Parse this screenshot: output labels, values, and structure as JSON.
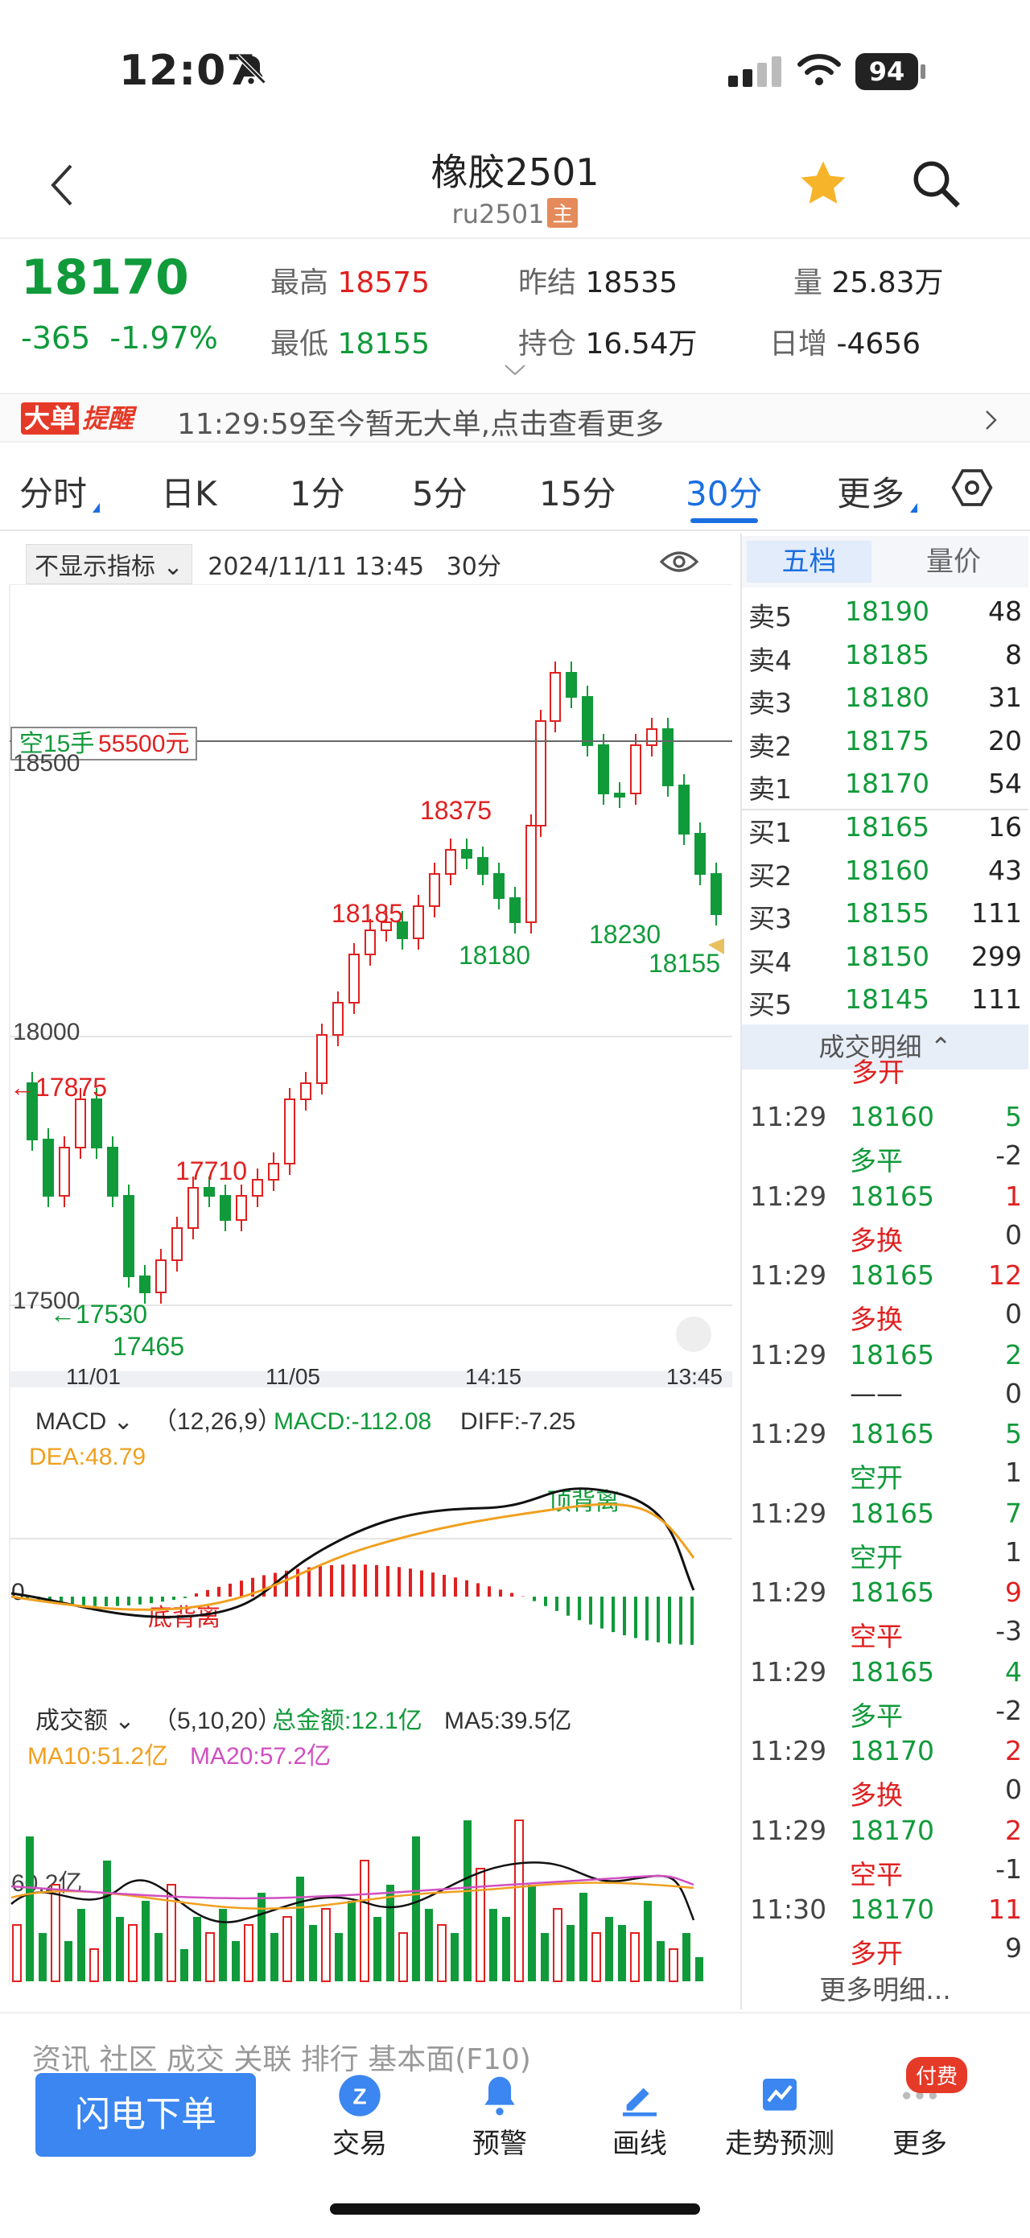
{
  "status_bar": {
    "time": "12:07",
    "battery": "94"
  },
  "header": {
    "title": "橡胶2501",
    "code": "ru2501",
    "main_tag": "主"
  },
  "quote": {
    "last_price": "18170",
    "change": "-365",
    "change_pct": "-1.97%",
    "high_label": "最高",
    "high": "18575",
    "low_label": "最低",
    "low": "18155",
    "prev_settle_label": "昨结",
    "prev_settle": "18535",
    "open_interest_label": "持仓",
    "open_interest": "16.54万",
    "volume_label": "量",
    "volume": "25.83万",
    "daily_inc_label": "日增",
    "daily_inc": "-4656"
  },
  "alert": {
    "tag_a": "大单",
    "tag_b": "提醒",
    "text": "11:29:59至今暂无大单,点击查看更多"
  },
  "tabs": [
    "分时",
    "日K",
    "1分",
    "5分",
    "15分",
    "30分",
    "更多"
  ],
  "active_tab": "30分",
  "chart_toolbar": {
    "indicator": "不显示指标",
    "datetime": "2024/11/11 13:45",
    "period": "30分"
  },
  "order_book": {
    "tab_a": "五档",
    "tab_b": "量价",
    "asks": [
      {
        "label": "卖5",
        "price": "18190",
        "vol": "48"
      },
      {
        "label": "卖4",
        "price": "18185",
        "vol": "8"
      },
      {
        "label": "卖3",
        "price": "18180",
        "vol": "31"
      },
      {
        "label": "卖2",
        "price": "18175",
        "vol": "20"
      },
      {
        "label": "卖1",
        "price": "18170",
        "vol": "54"
      }
    ],
    "bids": [
      {
        "label": "买1",
        "price": "18165",
        "vol": "16"
      },
      {
        "label": "买2",
        "price": "18160",
        "vol": "43"
      },
      {
        "label": "买3",
        "price": "18155",
        "vol": "111"
      },
      {
        "label": "买4",
        "price": "18150",
        "vol": "299"
      },
      {
        "label": "买5",
        "price": "18145",
        "vol": "111"
      }
    ]
  },
  "trades": {
    "header": "成交明细",
    "partial_top": "多开",
    "rows": [
      {
        "time": "11:29",
        "price": "18160",
        "vol": "5",
        "kind": "多平",
        "chg": "-2",
        "pc": "green",
        "vc": "green",
        "kc": "green"
      },
      {
        "time": "11:29",
        "price": "18165",
        "vol": "1",
        "kind": "多换",
        "chg": "0",
        "pc": "green",
        "vc": "red",
        "kc": "red"
      },
      {
        "time": "11:29",
        "price": "18165",
        "vol": "12",
        "kind": "多换",
        "chg": "0",
        "pc": "green",
        "vc": "red",
        "kc": "red"
      },
      {
        "time": "11:29",
        "price": "18165",
        "vol": "2",
        "kind": "——",
        "chg": "0",
        "pc": "green",
        "vc": "green",
        "kc": "dark"
      },
      {
        "time": "11:29",
        "price": "18165",
        "vol": "5",
        "kind": "空开",
        "chg": "1",
        "pc": "green",
        "vc": "green",
        "kc": "green"
      },
      {
        "time": "11:29",
        "price": "18165",
        "vol": "7",
        "kind": "空开",
        "chg": "1",
        "pc": "green",
        "vc": "green",
        "kc": "green"
      },
      {
        "time": "11:29",
        "price": "18165",
        "vol": "9",
        "kind": "空平",
        "chg": "-3",
        "pc": "green",
        "vc": "red",
        "kc": "red"
      },
      {
        "time": "11:29",
        "price": "18165",
        "vol": "4",
        "kind": "多平",
        "chg": "-2",
        "pc": "green",
        "vc": "green",
        "kc": "green"
      },
      {
        "time": "11:29",
        "price": "18170",
        "vol": "2",
        "kind": "多换",
        "chg": "0",
        "pc": "green",
        "vc": "red",
        "kc": "red"
      },
      {
        "time": "11:29",
        "price": "18170",
        "vol": "2",
        "kind": "空平",
        "chg": "-1",
        "pc": "green",
        "vc": "red",
        "kc": "red"
      },
      {
        "time": "11:30",
        "price": "18170",
        "vol": "11",
        "kind": "多开",
        "chg": "9",
        "pc": "green",
        "vc": "red",
        "kc": "red"
      }
    ],
    "more": "更多明细..."
  },
  "kline": {
    "position_label_a": "空15手",
    "position_label_b": "55500元",
    "y_ticks": [
      "18500",
      "18000",
      "17500"
    ],
    "x_ticks": [
      "11/01",
      "11/05",
      "14:15",
      "13:45"
    ],
    "markers": {
      "m17875": "←17875",
      "m17710": "17710",
      "m17530": "←17530",
      "m17465": "17465",
      "m18185": "18185",
      "m18180": "18180",
      "m18375": "18375",
      "m18230": "18230",
      "m18155": "18155"
    }
  },
  "macd": {
    "selector": "MACD",
    "params": "（12,26,9）",
    "macd_text": "MACD:-112.08",
    "diff_text": "DIFF:-7.25",
    "dea_text": "DEA:48.79",
    "zero_label": "0",
    "div_bottom": "底背离",
    "div_top": "顶背离"
  },
  "volume": {
    "selector": "成交额",
    "params": "（5,10,20）",
    "total_text": "总金额:12.1亿",
    "ma5_text": "MA5:39.5亿",
    "ma10_text": "MA10:51.2亿",
    "ma20_text": "MA20:57.2亿",
    "axis_label": "60.2亿"
  },
  "partial_tabs": "资讯      社区      成交      关联      排行      基本面(F10)",
  "bottom_nav": {
    "flash_order": "闪电下单",
    "items": [
      "交易",
      "预警",
      "画线",
      "走势预测",
      "更多"
    ],
    "badge": "付费"
  },
  "colors": {
    "up": "#e02020",
    "down": "#109a3a",
    "accent": "#1a6fe0",
    "dea": "#f0a020",
    "ma20": "#d050c0"
  }
}
